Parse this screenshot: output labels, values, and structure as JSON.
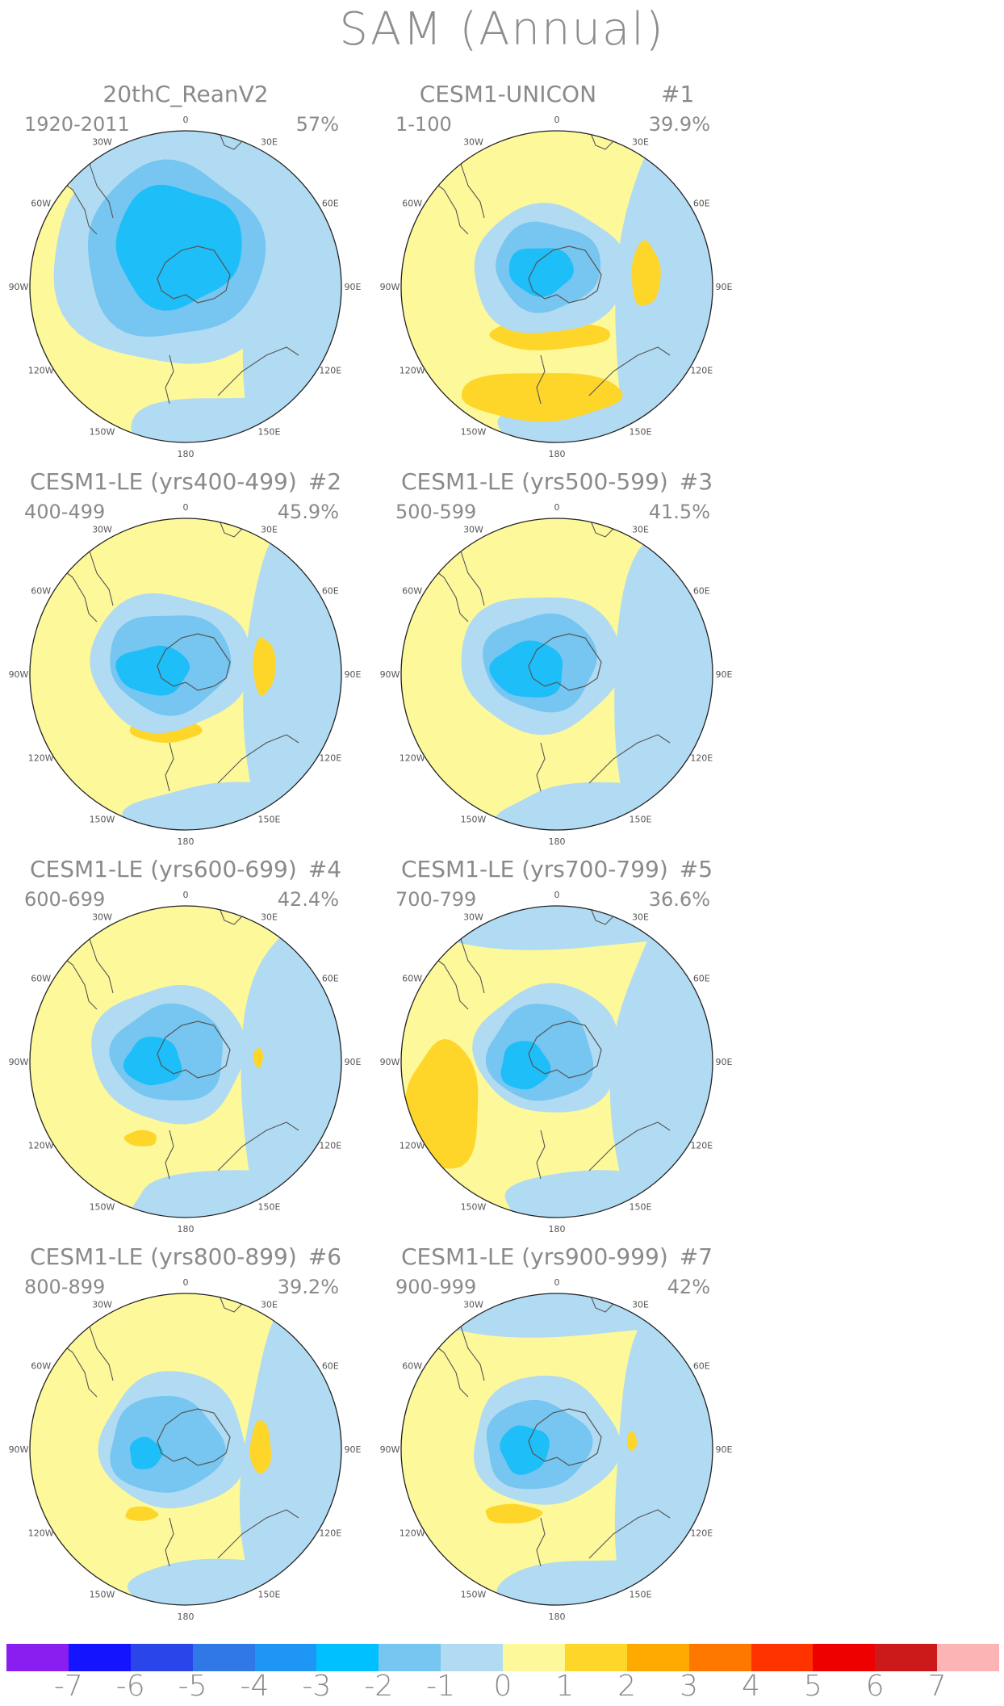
{
  "title": "SAM (Annual)",
  "colors": {
    "yellow": "#fdf89a",
    "light_blue": "#b1dbf2",
    "mid_blue": "#76c6f1",
    "deep_blue": "#1ebef8",
    "orange": "#fed529",
    "coast": "#555555"
  },
  "lon_labels": [
    "0",
    "30E",
    "60E",
    "90E",
    "120E",
    "150E",
    "180",
    "150W",
    "120W",
    "90W",
    "60W",
    "30W"
  ],
  "panels": [
    {
      "title": "20thC_ReanV2",
      "number": "",
      "years": "1920-2011",
      "percent": "57%"
    },
    {
      "title": "CESM1-UNICON",
      "number": "#1",
      "years": "1-100",
      "percent": "39.9%"
    },
    {
      "title": "CESM1-LE (yrs400-499)",
      "number": "#2",
      "years": "400-499",
      "percent": "45.9%"
    },
    {
      "title": "CESM1-LE (yrs500-599)",
      "number": "#3",
      "years": "500-599",
      "percent": "41.5%"
    },
    {
      "title": "CESM1-LE (yrs600-699)",
      "number": "#4",
      "years": "600-699",
      "percent": "42.4%"
    },
    {
      "title": "CESM1-LE (yrs700-799)",
      "number": "#5",
      "years": "700-799",
      "percent": "36.6%"
    },
    {
      "title": "CESM1-LE (yrs800-899)",
      "number": "#6",
      "years": "800-899",
      "percent": "39.2%"
    },
    {
      "title": "CESM1-LE (yrs900-999)",
      "number": "#7",
      "years": "900-999",
      "percent": "42%"
    }
  ],
  "colorbar": {
    "labels": [
      "-7",
      "-6",
      "-5",
      "-4",
      "-3",
      "-2",
      "-1",
      "0",
      "1",
      "2",
      "3",
      "4",
      "5",
      "6",
      "7"
    ],
    "colors": [
      "#8a1ef0",
      "#1414ff",
      "#2a46ea",
      "#3078e6",
      "#1e96f6",
      "#00c0ff",
      "#76c6f1",
      "#b1dbf2",
      "#fdf89a",
      "#fed529",
      "#feaa00",
      "#fe7800",
      "#ff3300",
      "#ee0000",
      "#cc1a1a",
      "#fdb4b4"
    ]
  }
}
